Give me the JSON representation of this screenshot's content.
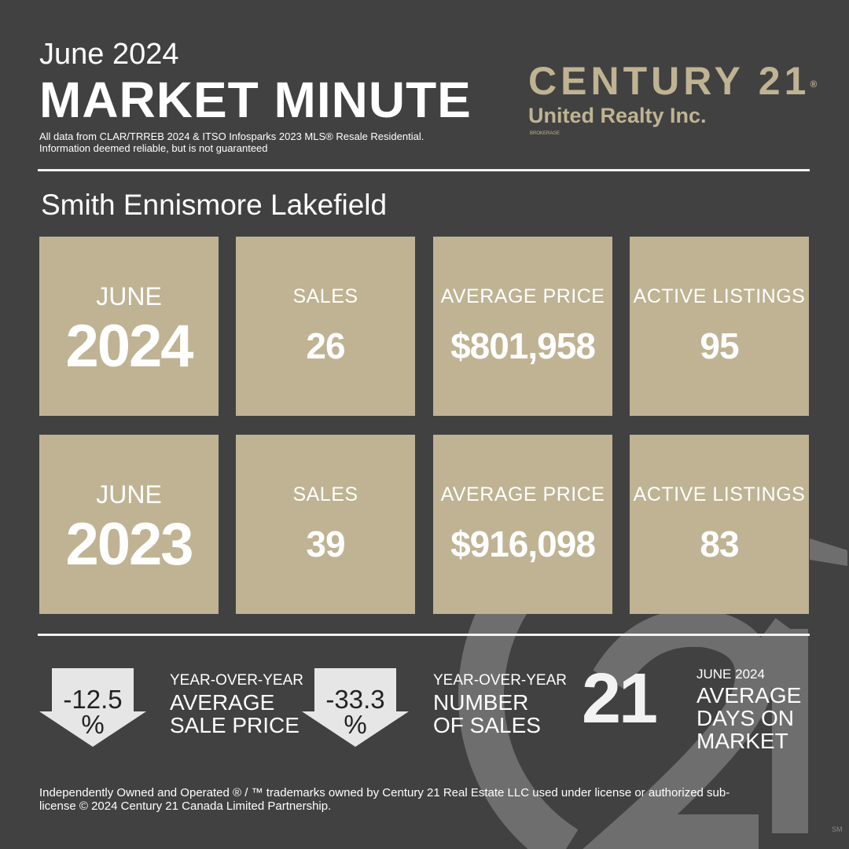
{
  "header": {
    "month": "June 2024",
    "title": "MARKET MINUTE",
    "source": [
      "All data from CLAR/TRREB 2024 & ITSO Infosparks 2023 MLS® Resale  Residential.",
      "Information deemed reliable, but is not guaranteed"
    ]
  },
  "brand": {
    "name": "CENTURY 21",
    "registered": "®",
    "office": "United Realty Inc.",
    "tag": "BROKERAGE"
  },
  "region": "Smith Ennismore Lakefield",
  "rows": [
    {
      "month": "JUNE",
      "year": "2024",
      "cards": [
        {
          "label": "SALES",
          "value": "26"
        },
        {
          "label": "AVERAGE PRICE",
          "value": "$801,958"
        },
        {
          "label": "ACTIVE LISTINGS",
          "value": "95"
        }
      ]
    },
    {
      "month": "JUNE",
      "year": "2023",
      "cards": [
        {
          "label": "SALES",
          "value": "39"
        },
        {
          "label": "AVERAGE PRICE",
          "value": "$916,098"
        },
        {
          "label": "ACTIVE LISTINGS",
          "value": "83"
        }
      ]
    }
  ],
  "changes": [
    {
      "value": "-12.5",
      "unit": "%",
      "label": [
        "YEAR-OVER-YEAR",
        "AVERAGE",
        "SALE PRICE"
      ]
    },
    {
      "value": "-33.3",
      "unit": "%",
      "label": [
        "YEAR-OVER-YEAR",
        "NUMBER",
        "OF SALES"
      ]
    }
  ],
  "days": {
    "value": "21",
    "period": "JUNE 2024",
    "label": [
      "AVERAGE",
      "DAYS ON",
      "MARKET"
    ]
  },
  "footer": [
    "Independently Owned and Operated ® / ™ trademarks owned by Century 21 Real Estate LLC used under license or authorized sub-",
    "license © 2024 Century 21 Canada Limited Partnership."
  ],
  "service_mark": "SM"
}
